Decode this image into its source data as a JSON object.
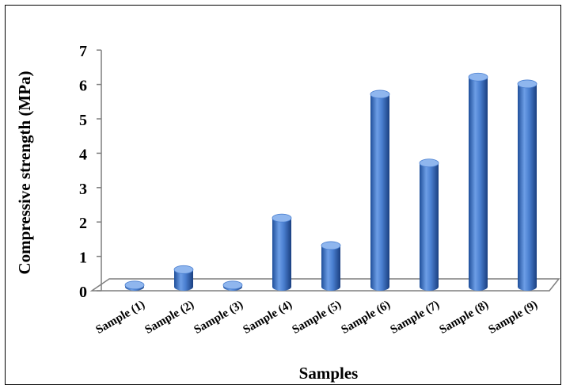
{
  "chart_data": {
    "type": "bar",
    "style": "3d-cylinder",
    "categories": [
      "Sample (1)",
      "Sample (2)",
      "Sample (3)",
      "Sample (4)",
      "Sample (5)",
      "Sample (6)",
      "Sample (7)",
      "Sample (8)",
      "Sample (9)"
    ],
    "values": [
      0.05,
      0.5,
      0.05,
      2.0,
      1.2,
      5.6,
      3.6,
      6.1,
      5.9
    ],
    "xlabel": "Samples",
    "ylabel": "Compressive strength (MPa)",
    "ylim": [
      0,
      7
    ],
    "yticks": [
      "0",
      "1",
      "2",
      "3",
      "4",
      "5",
      "6",
      "7"
    ],
    "grid": false,
    "legend": "none",
    "colors": {
      "bar": "#4a7fd0",
      "bar_dark": "#1f4f9a",
      "bar_light": "#8fb6ee",
      "axis": "#7f7f7f"
    }
  }
}
